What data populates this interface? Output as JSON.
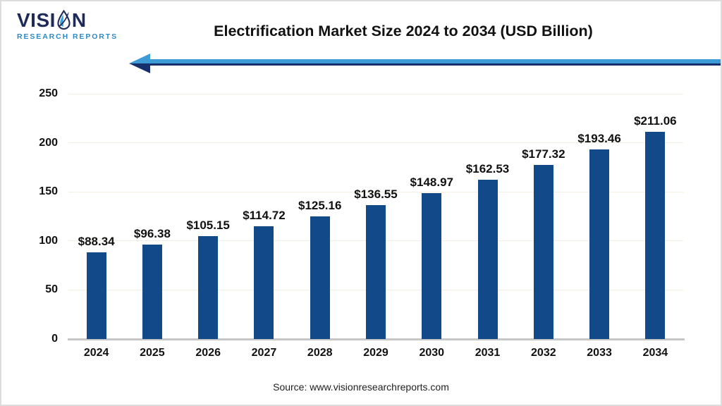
{
  "logo": {
    "vision_prefix": "VISI",
    "vision_suffix": "N",
    "subtitle": "RESEARCH REPORTS"
  },
  "header": {
    "title": "Electrification Market Size 2024 to 2034 (USD Billion)"
  },
  "footer": {
    "source": "Source: www.visionresearchreports.com"
  },
  "chart_data": {
    "type": "bar",
    "title": "Electrification Market Size 2024 to 2034 (USD Billion)",
    "unit": "USD Billion",
    "categories": [
      "2024",
      "2025",
      "2026",
      "2027",
      "2028",
      "2029",
      "2030",
      "2031",
      "2032",
      "2033",
      "2034"
    ],
    "values": [
      88.34,
      96.38,
      105.15,
      114.72,
      125.16,
      136.55,
      148.97,
      162.53,
      177.32,
      193.46,
      211.06
    ],
    "value_labels": [
      "$88.34",
      "$96.38",
      "$105.15",
      "$114.72",
      "$125.16",
      "$136.55",
      "$148.97",
      "$162.53",
      "$177.32",
      "$193.46",
      "$211.06"
    ],
    "xlabel": "",
    "ylabel": "",
    "ylim": [
      0,
      250
    ],
    "yticks": [
      0,
      50,
      100,
      150,
      200,
      250
    ],
    "grid": true,
    "legend": "none",
    "bar_color": "#124a89"
  },
  "colors": {
    "bar": "#124a89",
    "arrow_light_blue": "#3d9bd5",
    "arrow_dark_navy": "#182f6d",
    "logo_navy": "#1e2b58",
    "logo_light_blue": "#35a8e0",
    "logo_subtitle_blue": "#2e8ac6",
    "gridline": "#f3efe2",
    "axis_line": "#c6c6c6",
    "text": "#111111",
    "background": "#ffffff",
    "border": "#dcdcdc"
  }
}
